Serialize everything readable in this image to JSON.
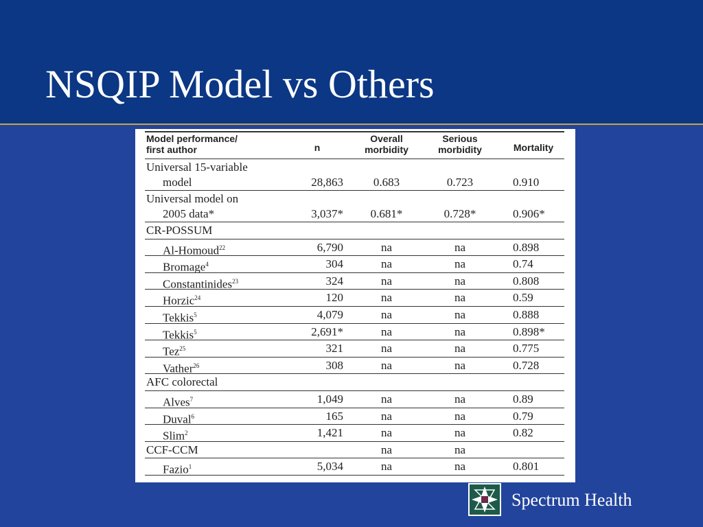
{
  "header": {
    "title": "NSQIP Model vs Others"
  },
  "table": {
    "columns": [
      [
        "Model performance/",
        "first author"
      ],
      [
        "n"
      ],
      [
        "Overall",
        "morbidity"
      ],
      [
        "Serious",
        "morbidity"
      ],
      [
        "Mortality"
      ]
    ],
    "rows": [
      {
        "label": [
          "Universal 15-variable",
          "model"
        ],
        "cells": [
          "28,863",
          "0.683",
          "0.723",
          "0.910"
        ]
      },
      {
        "label": [
          "Universal model on",
          "2005 data*"
        ],
        "cells": [
          "3,037*",
          "0.681*",
          "0.728*",
          "0.906*"
        ]
      },
      {
        "label": [
          "CR-POSSUM"
        ],
        "cells": []
      },
      {
        "label": [
          "Al-Homoud"
        ],
        "ref": "22",
        "cells": [
          "6,790",
          "na",
          "na",
          "0.898"
        ]
      },
      {
        "label": [
          "Bromage"
        ],
        "ref": "4",
        "cells": [
          "304",
          "na",
          "na",
          "0.74"
        ]
      },
      {
        "label": [
          "Constantinides"
        ],
        "ref": "23",
        "cells": [
          "324",
          "na",
          "na",
          "0.808"
        ]
      },
      {
        "label": [
          "Horzic"
        ],
        "ref": "24",
        "cells": [
          "120",
          "na",
          "na",
          "0.59"
        ]
      },
      {
        "label": [
          "Tekkis"
        ],
        "ref": "5",
        "cells": [
          "4,079",
          "na",
          "na",
          "0.888"
        ]
      },
      {
        "label": [
          "Tekkis"
        ],
        "ref": "5",
        "cells": [
          "2,691*",
          "na",
          "na",
          "0.898*"
        ]
      },
      {
        "label": [
          "Tez"
        ],
        "ref": "25",
        "cells": [
          "321",
          "na",
          "na",
          "0.775"
        ]
      },
      {
        "label": [
          "Vather"
        ],
        "ref": "26",
        "cells": [
          "308",
          "na",
          "na",
          "0.728"
        ]
      },
      {
        "label": [
          "AFC colorectal"
        ],
        "cells": []
      },
      {
        "label": [
          "Alves"
        ],
        "ref": "7",
        "cells": [
          "1,049",
          "na",
          "na",
          "0.89"
        ]
      },
      {
        "label": [
          "Duval"
        ],
        "ref": "6",
        "cells": [
          "165",
          "na",
          "na",
          "0.79"
        ]
      },
      {
        "label": [
          "Slim"
        ],
        "ref": "2",
        "cells": [
          "1,421",
          "na",
          "na",
          "0.82"
        ]
      },
      {
        "label": [
          "CCF-CCM"
        ],
        "cells": [
          null,
          "na",
          "na",
          null
        ]
      },
      {
        "label": [
          "Fazio"
        ],
        "ref": "1",
        "cells": [
          "5,034",
          "na",
          "na",
          "0.801"
        ]
      }
    ]
  },
  "footer": {
    "brand": "Spectrum Health"
  }
}
